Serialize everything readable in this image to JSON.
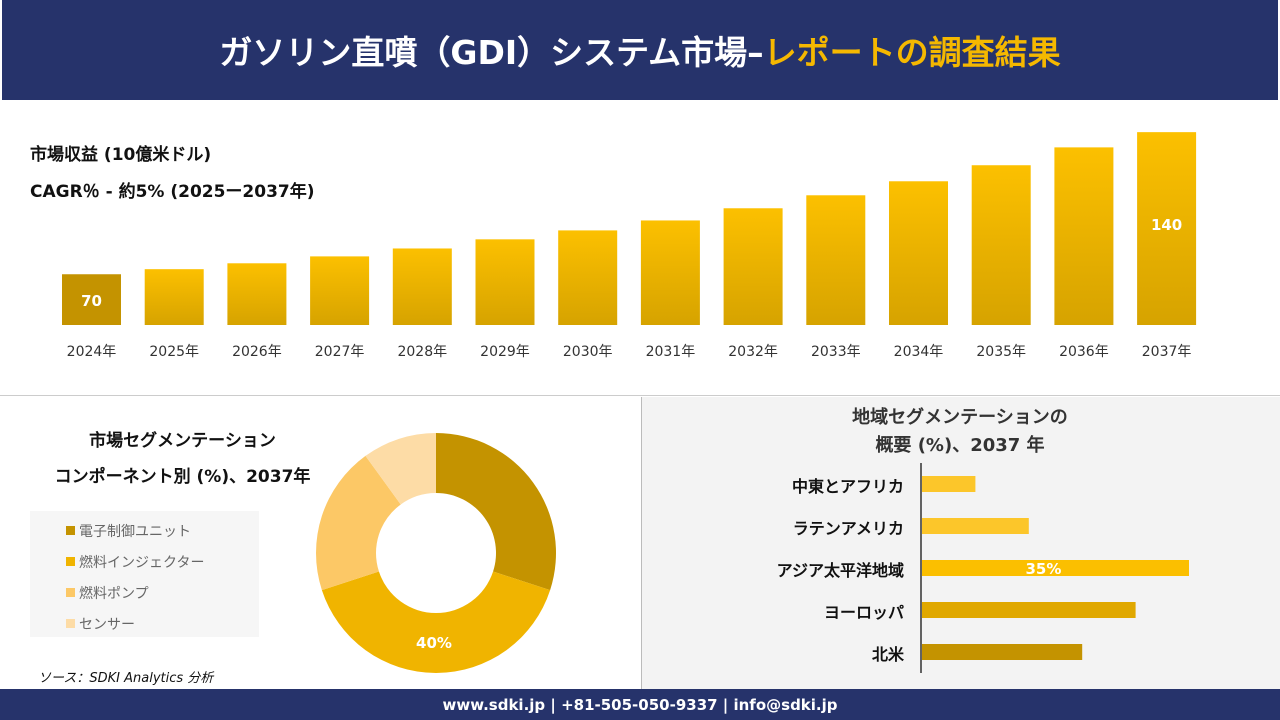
{
  "header": {
    "title_main": "ガソリン直噴（GDI）システム市場–",
    "title_accent": "レポートの調査結果"
  },
  "revenue_chart": {
    "label": "市場収益 (10億米ドル)",
    "cagr": "CAGR％ - 約5% (2025ー2037年)"
  },
  "component_segment": {
    "title_line1": "市場セグメンテーション",
    "title_line2": "コンポーネント別 (%)、2037年"
  },
  "regional_segment": {
    "title_line1": "地域セグメンテーションの",
    "title_line2": "概要 (%)、2037 年"
  },
  "source": "ソース：SDKI Analytics 分析",
  "footer": "www.sdki.jp | +81-505-050-9337 | info@sdki.jp",
  "colors": {
    "navy": "#26336b",
    "accent": "#f5b800"
  },
  "chart_data": [
    {
      "type": "bar",
      "categories": [
        "2024年",
        "2025年",
        "2026年",
        "2027年",
        "2028年",
        "2029年",
        "2030年",
        "2031年",
        "2032年",
        "2033年",
        "2034年",
        "2035年",
        "2036年",
        "2037年"
      ],
      "values": [
        70,
        72.5,
        75.4,
        78.8,
        82.7,
        87.2,
        91.6,
        96.5,
        102.5,
        108.9,
        115.8,
        123.7,
        132.5,
        140
      ],
      "data_labels": {
        "0": "70",
        "13": "140"
      },
      "grid": false
    },
    {
      "type": "pie",
      "donut": true,
      "categories": [
        "電子制御ユニット",
        "燃料インジェクター",
        "燃料ポンプ",
        "センサー"
      ],
      "values": [
        30,
        40,
        20,
        10
      ],
      "colors": [
        "#c49300",
        "#f0b400",
        "#fcc866",
        "#fddca6"
      ],
      "data_labels": {
        "1": "40%"
      },
      "legend": "left"
    },
    {
      "type": "bar",
      "orientation": "horizontal",
      "categories": [
        "中東とアフリカ",
        "ラテンアメリカ",
        "アジア太平洋地域",
        "ヨーロッパ",
        "北米"
      ],
      "values": [
        7,
        14,
        35,
        28,
        21
      ],
      "colors": [
        "#fcc62a",
        "#fcc62a",
        "#fbbf00",
        "#e0a800",
        "#c49300"
      ],
      "data_labels": {
        "2": "35%"
      }
    }
  ]
}
